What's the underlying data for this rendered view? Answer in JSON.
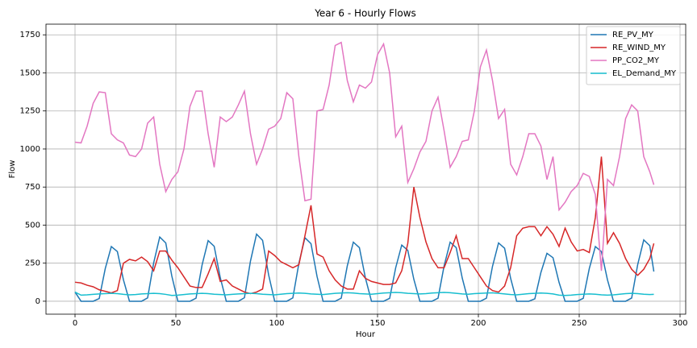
{
  "chart_data": {
    "type": "line",
    "title": "Year 6 - Hourly Flows",
    "xlabel": "Hour",
    "ylabel": "Flow",
    "x": [
      0,
      3,
      6,
      9,
      12,
      15,
      18,
      21,
      24,
      27,
      30,
      33,
      36,
      39,
      42,
      45,
      48,
      51,
      54,
      57,
      60,
      63,
      66,
      69,
      72,
      75,
      78,
      81,
      84,
      87,
      90,
      93,
      96,
      99,
      102,
      105,
      108,
      111,
      114,
      117,
      120,
      123,
      126,
      129,
      132,
      135,
      138,
      141,
      144,
      147,
      150,
      153,
      156,
      159,
      162,
      165,
      168,
      171,
      174,
      177,
      180,
      183,
      186,
      189,
      192,
      195,
      198,
      201,
      204,
      207,
      210,
      213,
      216,
      219,
      222,
      225,
      228,
      231,
      234,
      237,
      240,
      243,
      246,
      249,
      252,
      255,
      258,
      261,
      264,
      267,
      270,
      273,
      276,
      279,
      282,
      285,
      287
    ],
    "series": [
      {
        "name": "RE_PV_MY",
        "color": "#1f77b4",
        "values": [
          60,
          0,
          0,
          0,
          18,
          215,
          359,
          326,
          141,
          0,
          0,
          0,
          22,
          252,
          422,
          383,
          165,
          0,
          0,
          0,
          20,
          238,
          398,
          361,
          156,
          0,
          0,
          0,
          23,
          264,
          441,
          400,
          173,
          0,
          0,
          0,
          22,
          249,
          417,
          378,
          163,
          0,
          0,
          0,
          20,
          232,
          388,
          352,
          152,
          0,
          0,
          0,
          19,
          220,
          369,
          334,
          144,
          0,
          0,
          0,
          20,
          232,
          388,
          352,
          152,
          0,
          0,
          0,
          20,
          229,
          383,
          348,
          150,
          0,
          0,
          0,
          16,
          189,
          315,
          286,
          124,
          0,
          0,
          0,
          19,
          215,
          359,
          326,
          141,
          0,
          0,
          0,
          21,
          241,
          403,
          365,
          195
        ]
      },
      {
        "name": "RE_WIND_MY",
        "color": "#d62728",
        "values": [
          125,
          120,
          105,
          95,
          75,
          65,
          55,
          70,
          250,
          275,
          265,
          290,
          260,
          200,
          330,
          330,
          270,
          220,
          160,
          100,
          90,
          90,
          180,
          280,
          130,
          140,
          100,
          80,
          60,
          50,
          60,
          80,
          330,
          300,
          260,
          240,
          220,
          240,
          430,
          630,
          310,
          290,
          200,
          140,
          100,
          80,
          80,
          200,
          150,
          130,
          120,
          110,
          110,
          120,
          200,
          380,
          750,
          550,
          390,
          280,
          220,
          220,
          320,
          430,
          280,
          280,
          220,
          160,
          100,
          70,
          60,
          100,
          220,
          430,
          480,
          490,
          490,
          430,
          490,
          440,
          360,
          480,
          390,
          330,
          340,
          320,
          550,
          950,
          380,
          450,
          380,
          280,
          210,
          170,
          210,
          280,
          380
        ]
      },
      {
        "name": "PP_CO2_MY",
        "color": "#e377c2",
        "values": [
          1045,
          1040,
          1150,
          1300,
          1375,
          1370,
          1100,
          1060,
          1040,
          960,
          950,
          1000,
          1170,
          1210,
          900,
          720,
          800,
          850,
          1000,
          1280,
          1380,
          1380,
          1100,
          880,
          1210,
          1180,
          1210,
          1290,
          1380,
          1100,
          900,
          1000,
          1130,
          1150,
          1200,
          1370,
          1330,
          950,
          660,
          670,
          1250,
          1260,
          1420,
          1680,
          1700,
          1450,
          1310,
          1420,
          1400,
          1440,
          1620,
          1690,
          1500,
          1080,
          1150,
          780,
          870,
          980,
          1050,
          1250,
          1340,
          1120,
          880,
          950,
          1050,
          1060,
          1250,
          1540,
          1650,
          1450,
          1200,
          1260,
          900,
          830,
          950,
          1100,
          1100,
          1020,
          800,
          950,
          600,
          650,
          720,
          760,
          840,
          820,
          700,
          200,
          800,
          760,
          950,
          1200,
          1290,
          1250,
          950,
          850,
          765
        ]
      },
      {
        "name": "EL_Demand_MY",
        "color": "#17becf",
        "values": [
          60,
          40,
          42,
          45,
          48,
          50,
          52,
          50,
          45,
          42,
          44,
          48,
          50,
          52,
          50,
          45,
          38,
          40,
          44,
          48,
          50,
          52,
          50,
          46,
          44,
          42,
          45,
          48,
          50,
          52,
          50,
          46,
          44,
          42,
          46,
          50,
          52,
          54,
          52,
          48,
          46,
          44,
          48,
          52,
          54,
          56,
          54,
          50,
          48,
          46,
          50,
          54,
          56,
          58,
          56,
          52,
          50,
          48,
          50,
          54,
          56,
          58,
          56,
          52,
          48,
          46,
          50,
          52,
          54,
          55,
          52,
          48,
          44,
          42,
          46,
          50,
          52,
          54,
          52,
          48,
          40,
          38,
          40,
          44,
          46,
          48,
          46,
          42,
          40,
          42,
          46,
          50,
          52,
          50,
          46,
          44,
          45
        ]
      }
    ],
    "xlim": [
      -14.4,
      302.8
    ],
    "ylim": [
      -85,
      1820
    ],
    "xticks": [
      0,
      50,
      100,
      150,
      200,
      250,
      300
    ],
    "yticks": [
      0,
      250,
      500,
      750,
      1000,
      1250,
      1500,
      1750
    ],
    "grid": true,
    "legend": "upper right"
  }
}
